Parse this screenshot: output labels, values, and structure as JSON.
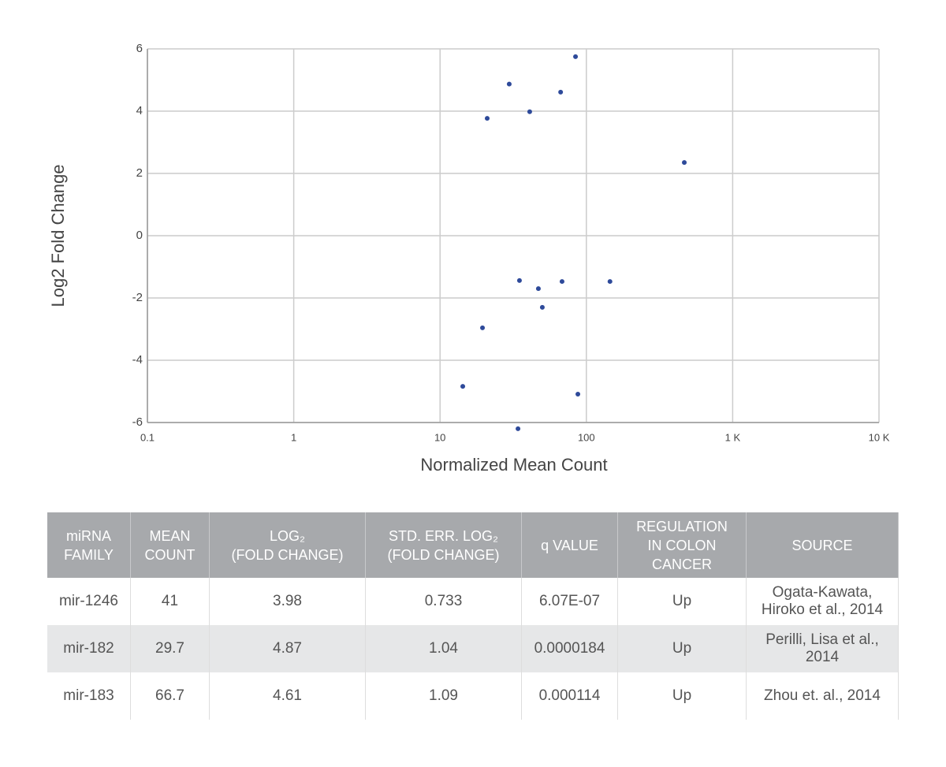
{
  "chart_data": {
    "type": "scatter",
    "x_label": "Normalized Mean Count",
    "y_label": "Log2 Fold Change",
    "xscale": "log",
    "grid": true,
    "color": "#2e4a9a",
    "xlim": [
      0.1,
      10000
    ],
    "xticks": [
      0.1,
      1,
      10,
      100,
      {
        "value": 1000,
        "label": "1 K"
      },
      {
        "value": 10000,
        "label": "10 K"
      }
    ],
    "ylim": [
      -6,
      6
    ],
    "yticks": [
      -6,
      -4,
      -2,
      0,
      2,
      4,
      6
    ],
    "x": [
      84.3,
      29.7,
      66.7,
      41,
      21.0,
      467,
      34.9,
      47.0,
      68.2,
      145,
      50.0,
      19.5,
      14.3,
      87.5,
      34.1
    ],
    "y": [
      5.75,
      4.87,
      4.61,
      3.98,
      3.77,
      2.35,
      -1.44,
      -1.7,
      -1.47,
      -1.47,
      -2.3,
      -2.96,
      -4.84,
      -5.09,
      -6.2
    ]
  },
  "table": {
    "headers": [
      "miRNA\nFAMILY",
      "MEAN\nCOUNT",
      "LOG₂\n(FOLD CHANGE)",
      "STD. ERR. LOG₂\n(FOLD CHANGE)",
      "q VALUE",
      "REGULATION\nIN COLON\nCANCER",
      "SOURCE"
    ],
    "rows": [
      [
        "mir-1246",
        "41",
        "3.98",
        "0.733",
        "6.07E-07",
        "Up",
        "Ogata-Kawata,\nHiroko et al., 2014"
      ],
      [
        "mir-182",
        "29.7",
        "4.87",
        "1.04",
        "0.0000184",
        "Up",
        "Perilli, Lisa et al.,\n2014"
      ],
      [
        "mir-183",
        "66.7",
        "4.61",
        "1.09",
        "0.000114",
        "Up",
        "Zhou et. al., 2014"
      ]
    ]
  }
}
